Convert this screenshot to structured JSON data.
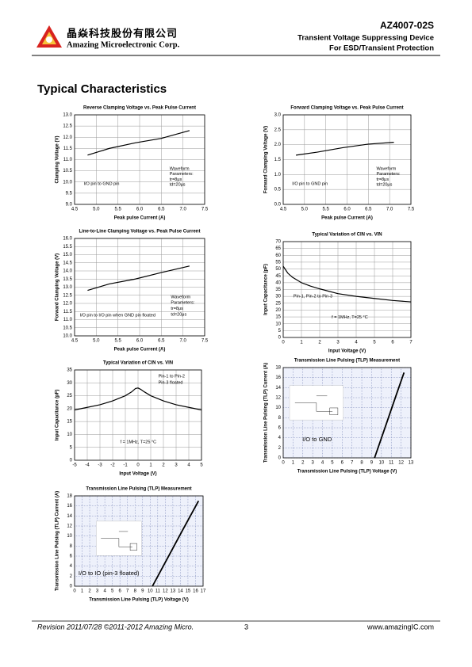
{
  "header": {
    "company_cn": "晶焱科技股份有限公司",
    "company_en": "Amazing Microelectronic Corp.",
    "part": "AZ4007-02S",
    "line1": "Transient Voltage Suppressing Device",
    "line2": "For ESD/Transient Protection"
  },
  "section_title": "Typical Characteristics",
  "chart_data": [
    {
      "type": "line",
      "title": "Reverse Clamping Voltage vs. Peak Pulse Current",
      "x_label": "Peak pulse Current (A)",
      "y_label": "Clamping Voltage (V)",
      "x": [
        4.8,
        5.3,
        5.9,
        6.5,
        7.15
      ],
      "values": [
        11.2,
        11.5,
        11.75,
        11.95,
        12.3
      ],
      "color": "#000000",
      "xlim": [
        4.5,
        7.5
      ],
      "xticks": [
        4.5,
        {
          "value": 5,
          "label": "5.0"
        },
        5.5,
        {
          "value": 6,
          "label": "6.0"
        },
        6.5,
        {
          "value": 7,
          "label": "7.0"
        },
        7.5
      ],
      "ylim": [
        9,
        13
      ],
      "yticks": [
        {
          "value": 9,
          "label": "9.0"
        },
        9.5,
        {
          "value": 10,
          "label": "10.0"
        },
        10.5,
        {
          "value": 11,
          "label": "11.0"
        },
        11.5,
        {
          "value": 12,
          "label": "12.0"
        },
        12.5,
        {
          "value": 13,
          "label": "13.0"
        }
      ],
      "grid": true,
      "annotations": [
        "I/O pin to GND pin",
        "Waveform",
        "Parameters:",
        "tr=8μs",
        "td=20μs"
      ]
    },
    {
      "type": "line",
      "title": "Forward Clamping Voltage vs. Peak Pulse Current",
      "x_label": "Peak pulse Current (A)",
      "y_label": "Forward Clamping Voltage (V)",
      "x": [
        4.8,
        5.3,
        5.9,
        6.5,
        7.1
      ],
      "values": [
        1.65,
        1.75,
        1.9,
        2.02,
        2.08
      ],
      "color": "#000000",
      "xlim": [
        4.5,
        7.5
      ],
      "xticks": [
        4.5,
        {
          "value": 5,
          "label": "5.0"
        },
        5.5,
        {
          "value": 6,
          "label": "6.0"
        },
        6.5,
        {
          "value": 7,
          "label": "7.0"
        },
        7.5
      ],
      "ylim": [
        0,
        3
      ],
      "yticks": [
        {
          "value": 0,
          "label": "0.0"
        },
        0.5,
        {
          "value": 1,
          "label": "1.0"
        },
        1.5,
        {
          "value": 2,
          "label": "2.0"
        },
        2.5,
        {
          "value": 3,
          "label": "3.0"
        }
      ],
      "grid": true,
      "annotations": [
        "I/O pin to GND pin",
        "Waveform",
        "Parameters:",
        "tr=8μs",
        "td=20μs"
      ]
    },
    {
      "type": "line",
      "title": "Line-to-Line Clamping Voltage vs. Peak Pulse Current",
      "x_label": "Peak pulse Current (A)",
      "y_label": "Forward Clamping Voltage (V)",
      "x": [
        4.8,
        5.3,
        5.9,
        6.5,
        7.15
      ],
      "values": [
        12.8,
        13.2,
        13.5,
        13.9,
        14.3
      ],
      "color": "#000000",
      "xlim": [
        4.5,
        7.5
      ],
      "xticks": [
        4.5,
        {
          "value": 5,
          "label": "5.0"
        },
        5.5,
        {
          "value": 6,
          "label": "6.0"
        },
        6.5,
        {
          "value": 7,
          "label": "7.0"
        },
        7.5
      ],
      "ylim": [
        10,
        16
      ],
      "yticks": [
        {
          "value": 10,
          "label": "10.0"
        },
        10.5,
        {
          "value": 11,
          "label": "11.0"
        },
        11.5,
        {
          "value": 12,
          "label": "12.0"
        },
        12.5,
        {
          "value": 13,
          "label": "13.0"
        },
        13.5,
        {
          "value": 14,
          "label": "14.0"
        },
        14.5,
        {
          "value": 15,
          "label": "15.0"
        },
        15.5,
        {
          "value": 16,
          "label": "16.0"
        }
      ],
      "grid": true,
      "annotations": [
        "I/O pin to I/O pin when GND pin floated",
        "Waveform",
        "Parameters:",
        "tr=8μs",
        "td=20μs"
      ]
    },
    {
      "type": "line",
      "title": "Typical Variation of CIN vs. VIN",
      "x_label": "Input Voltage (V)",
      "y_label": "Input Capacitance (pF)",
      "x": [
        0,
        0.25,
        0.5,
        1,
        1.5,
        2,
        3,
        4,
        5,
        6,
        7
      ],
      "values": [
        52,
        47,
        44,
        40,
        37.5,
        35.5,
        32,
        30,
        28.5,
        27,
        26
      ],
      "color": "#000000",
      "xlim": [
        0,
        7
      ],
      "xticks": [
        0,
        1,
        2,
        3,
        4,
        5,
        6,
        7
      ],
      "ylim": [
        0,
        70
      ],
      "yticks": [
        0,
        5,
        10,
        15,
        20,
        25,
        30,
        35,
        40,
        45,
        50,
        55,
        60,
        65,
        70
      ],
      "grid": true,
      "annotations": [
        "Pin-1, Pin-2 to Pin-3",
        "f = 1MHz, T=25 °C"
      ]
    },
    {
      "type": "line",
      "title": "Typical Variation of CIN vs. VIN",
      "x_label": "Input Voltage (V)",
      "y_label": "Input Capacitance (pF)",
      "x": [
        -5,
        -4,
        -3,
        -2,
        -1,
        -0.5,
        -0.2,
        0,
        0.2,
        0.5,
        1,
        2,
        3,
        4,
        5
      ],
      "values": [
        19.5,
        20.5,
        21.5,
        23,
        25,
        26.5,
        27.8,
        28,
        27.5,
        26.5,
        25,
        23,
        21.5,
        20.5,
        19.5
      ],
      "color": "#000000",
      "xlim": [
        -5,
        5
      ],
      "xticks": [
        -5,
        -4,
        -3,
        -2,
        -1,
        0,
        1,
        2,
        3,
        4,
        5
      ],
      "ylim": [
        0,
        35
      ],
      "yticks": [
        0,
        5,
        10,
        15,
        20,
        25,
        30,
        35
      ],
      "grid": true,
      "annotations": [
        "Pin-1 to Pin-2",
        "Pin-3 floated",
        "f = 1MHz, T=25 °C"
      ]
    },
    {
      "type": "line",
      "title": "Transmission Line Pulsing (TLP) Measurement",
      "x_label": "Transmission Line Pulsing (TLP) Voltage (V)",
      "y_label": "Transmission Line Pulsing (TLP) Current (A)",
      "x": [
        9.3,
        10.5,
        11.5,
        12.3
      ],
      "values": [
        0,
        6.8,
        12.5,
        17
      ],
      "color": "#000000",
      "xlim": [
        0,
        13
      ],
      "xticks": [
        0,
        1,
        2,
        3,
        4,
        5,
        6,
        7,
        8,
        9,
        10,
        11,
        12,
        13
      ],
      "ylim": [
        0,
        18
      ],
      "yticks": [
        0,
        2,
        4,
        6,
        8,
        10,
        12,
        14,
        16,
        18
      ],
      "grid": "dotted",
      "annotations": [
        "I/O to GND"
      ]
    },
    {
      "type": "line",
      "title": "Transmission Line Pulsing (TLP) Measurement",
      "x_label": "Transmission Line Pulsing (TLP) Voltage (V)",
      "y_label": "Transmission Line Pulsing (TLP) Current (A)",
      "x": [
        10.3,
        12.3,
        14.3,
        16.4
      ],
      "values": [
        0,
        5.6,
        11.2,
        17
      ],
      "color": "#000000",
      "xlim": [
        0,
        17
      ],
      "xticks": [
        0,
        1,
        2,
        3,
        4,
        5,
        6,
        7,
        8,
        9,
        10,
        11,
        12,
        13,
        14,
        15,
        16,
        17
      ],
      "ylim": [
        0,
        18
      ],
      "yticks": [
        0,
        2,
        4,
        6,
        8,
        10,
        12,
        14,
        16,
        18
      ],
      "grid": "dotted",
      "annotations": [
        "I/O to IO (pin-3 floated)"
      ]
    }
  ],
  "footer": {
    "revision": "Revision 2011/07/28 ©2011-2012 Amazing Micro.",
    "page": "3",
    "url": "www.amazingIC.com"
  }
}
